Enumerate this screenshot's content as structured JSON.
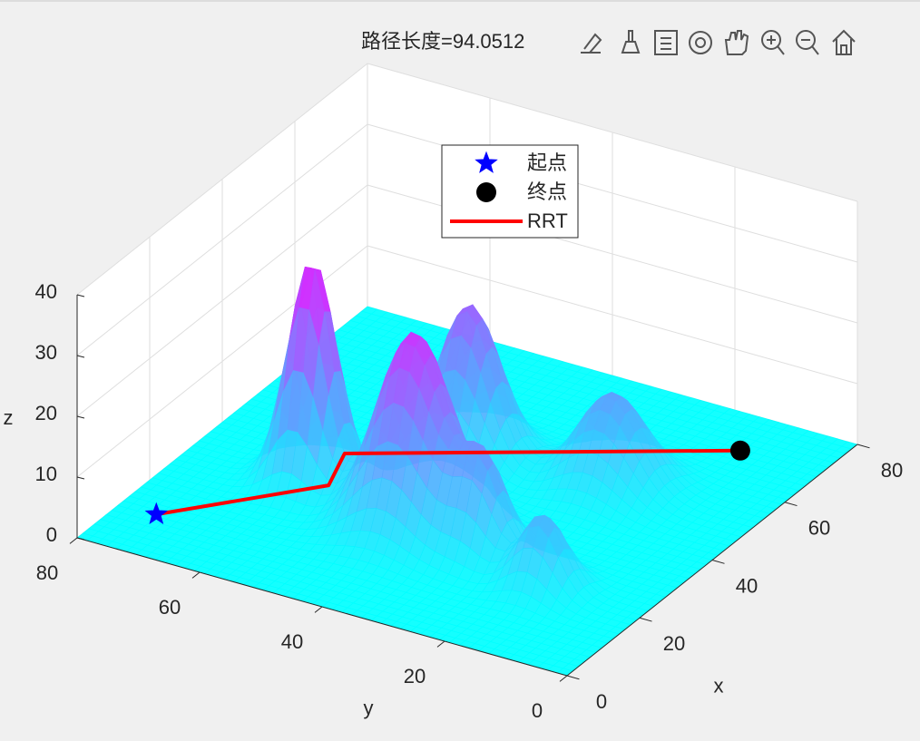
{
  "chart_data": {
    "type": "surface3d",
    "title": "路径长度=94.0512",
    "xlabel": "x",
    "ylabel": "y",
    "zlabel": "z",
    "xlim": [
      0,
      80
    ],
    "ylim": [
      0,
      80
    ],
    "zlim": [
      0,
      40
    ],
    "xticks": [
      0,
      20,
      40,
      60,
      80
    ],
    "yticks": [
      0,
      20,
      40,
      60,
      80
    ],
    "zticks": [
      0,
      10,
      20,
      30,
      40
    ],
    "grid": true,
    "colormap": [
      "#00ffff",
      "#ff00ff"
    ],
    "surface": {
      "peaks": [
        {
          "x": 31,
          "y": 60,
          "z": 37,
          "width": 3.5
        },
        {
          "x": 27,
          "y": 41,
          "z": 32,
          "width": 5.5
        },
        {
          "x": 49,
          "y": 45,
          "z": 25,
          "width": 4.5
        },
        {
          "x": 52,
          "y": 23.5,
          "z": 15,
          "width": 5
        },
        {
          "x": 25,
          "y": 28.6,
          "z": 15,
          "width": 3.5
        },
        {
          "x": 20.7,
          "y": 16.3,
          "z": 12,
          "width": 3.5
        }
      ]
    },
    "series": [
      {
        "name": "起点",
        "marker": "star",
        "color": "#0000ff",
        "x": [
          11.7
        ],
        "y": [
          74
        ]
      },
      {
        "name": "终点",
        "marker": "circle",
        "color": "#000000",
        "x": [
          70
        ],
        "y": [
          13.2
        ]
      },
      {
        "name": "RRT",
        "marker": "line",
        "color": "#ff0000",
        "x": [
          11.7,
          31.5,
          40.8,
          70
        ],
        "y": [
          74,
          57.6,
          60.5,
          13.2
        ]
      }
    ],
    "legend": "top"
  }
}
